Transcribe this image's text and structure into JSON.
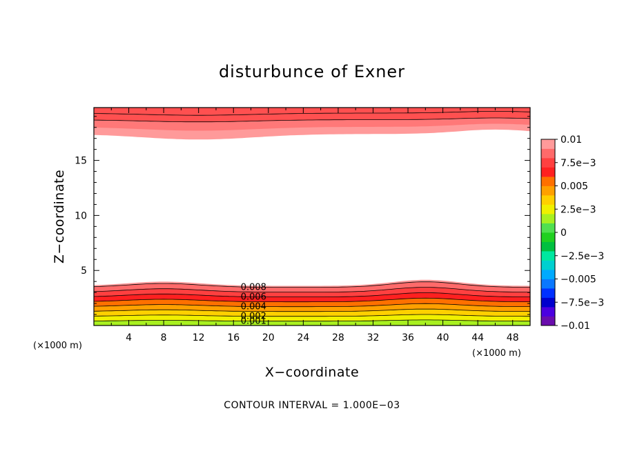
{
  "chart_data": {
    "type": "heatmap",
    "title": "disturbunce of Exner",
    "xlabel": "X−coordinate",
    "ylabel": "Z−coordinate",
    "x_unit": "(×1000 m)",
    "x_unit_right": "(×1000 m)",
    "xlim": [
      0,
      50
    ],
    "ylim": [
      0,
      19.8
    ],
    "x_ticks": [
      "4",
      "8",
      "12",
      "16",
      "20",
      "24",
      "28",
      "32",
      "36",
      "40",
      "44",
      "48"
    ],
    "y_ticks": [
      "5",
      "10",
      "15"
    ],
    "footer": "CONTOUR INTERVAL = 1.000E−03",
    "colorbar": {
      "min": -0.01,
      "max": 0.01,
      "labels": [
        "0.01",
        "7.5e−3",
        "0.005",
        "2.5e−3",
        "0",
        "−2.5e−3",
        "−0.005",
        "−7.5e−3",
        "−0.01"
      ],
      "colors_bottom_to_top": [
        "#6a0dad",
        "#4b00e0",
        "#0000cd",
        "#0030ff",
        "#0a78ff",
        "#00aaff",
        "#00d0d0",
        "#00e8a0",
        "#00c040",
        "#20d020",
        "#50e050",
        "#a8f020",
        "#f0f000",
        "#ffd000",
        "#ffa000",
        "#ff7000",
        "#ff2020",
        "#ff4040",
        "#ff6a6a",
        "#ff9a9a"
      ]
    },
    "contour_labels": [
      "0.008",
      "0.006",
      "0.004",
      "0.002",
      "0.001"
    ],
    "fields": {
      "lower_band_levels": [
        0.008,
        0.007,
        0.006,
        0.005,
        0.004,
        0.003,
        0.002,
        0.001
      ],
      "upper_band_levels": [
        0.009,
        0.01
      ],
      "lower_band_top_z_km": 3.6,
      "upper_band_bottom_z_km": 17.4,
      "bump_centers_x_km": [
        8,
        38
      ]
    }
  }
}
